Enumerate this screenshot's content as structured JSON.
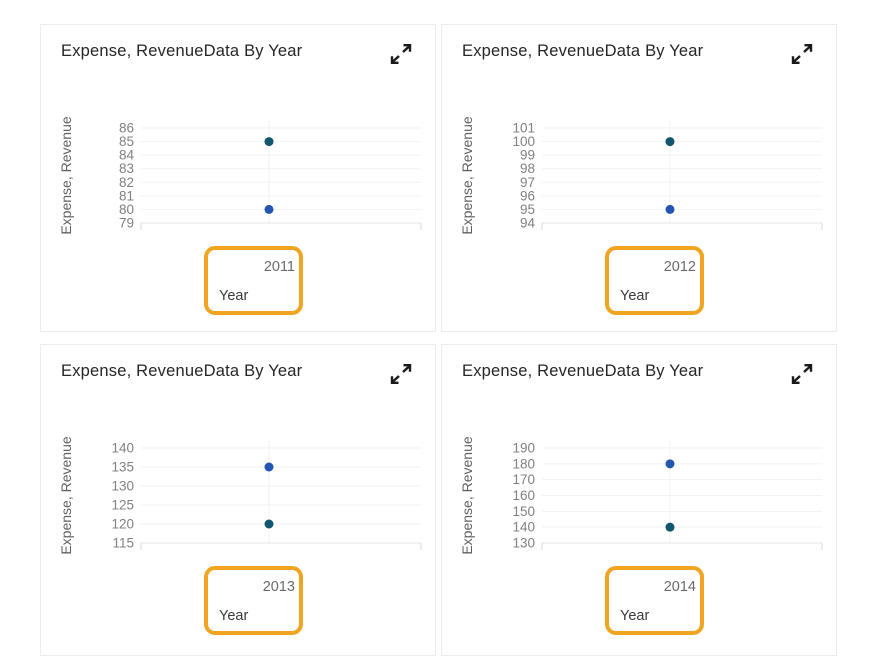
{
  "page": {
    "background": "#ffffff"
  },
  "colors": {
    "dot_teal": "#10566f",
    "dot_blue": "#2355b1",
    "highlight_orange": "#f0a41f",
    "card_border": "#ececec",
    "gridline": "#f2f2f2",
    "axis_line": "#e4e4e4",
    "tick_text": "#818181"
  },
  "chart_data": [
    {
      "type": "scatter",
      "title": "Expense, RevenueData By Year",
      "xlabel": "Year",
      "ylabel": "Expense, Revenue",
      "x_tick": "2011",
      "y_ticks": [
        86,
        85,
        84,
        83,
        82,
        81,
        80,
        79
      ],
      "ylim": [
        79,
        86
      ],
      "grid": true,
      "legend": "none",
      "points": [
        {
          "value": 85,
          "color": "#10566f"
        },
        {
          "value": 80,
          "color": "#2355b1"
        }
      ],
      "highlight_color": "#f0a41f"
    },
    {
      "type": "scatter",
      "title": "Expense, RevenueData By Year",
      "xlabel": "Year",
      "ylabel": "Expense, Revenue",
      "x_tick": "2012",
      "y_ticks": [
        101,
        100,
        99,
        98,
        97,
        96,
        95,
        94
      ],
      "ylim": [
        94,
        101
      ],
      "grid": true,
      "legend": "none",
      "points": [
        {
          "value": 100,
          "color": "#10566f"
        },
        {
          "value": 95,
          "color": "#2355b1"
        }
      ],
      "highlight_color": "#f0a41f"
    },
    {
      "type": "scatter",
      "title": "Expense, RevenueData By Year",
      "xlabel": "Year",
      "ylabel": "Expense, Revenue",
      "x_tick": "2013",
      "y_ticks": [
        140,
        135,
        130,
        125,
        120,
        115
      ],
      "ylim": [
        115,
        140
      ],
      "grid": true,
      "legend": "none",
      "points": [
        {
          "value": 135,
          "color": "#2355b1"
        },
        {
          "value": 120,
          "color": "#10566f"
        }
      ],
      "highlight_color": "#f0a41f"
    },
    {
      "type": "scatter",
      "title": "Expense, RevenueData By Year",
      "xlabel": "Year",
      "ylabel": "Expense, Revenue",
      "x_tick": "2014",
      "y_ticks": [
        190,
        180,
        170,
        160,
        150,
        140,
        130
      ],
      "ylim": [
        130,
        190
      ],
      "grid": true,
      "legend": "none",
      "points": [
        {
          "value": 180,
          "color": "#2355b1"
        },
        {
          "value": 140,
          "color": "#10566f"
        }
      ],
      "highlight_color": "#f0a41f"
    }
  ]
}
